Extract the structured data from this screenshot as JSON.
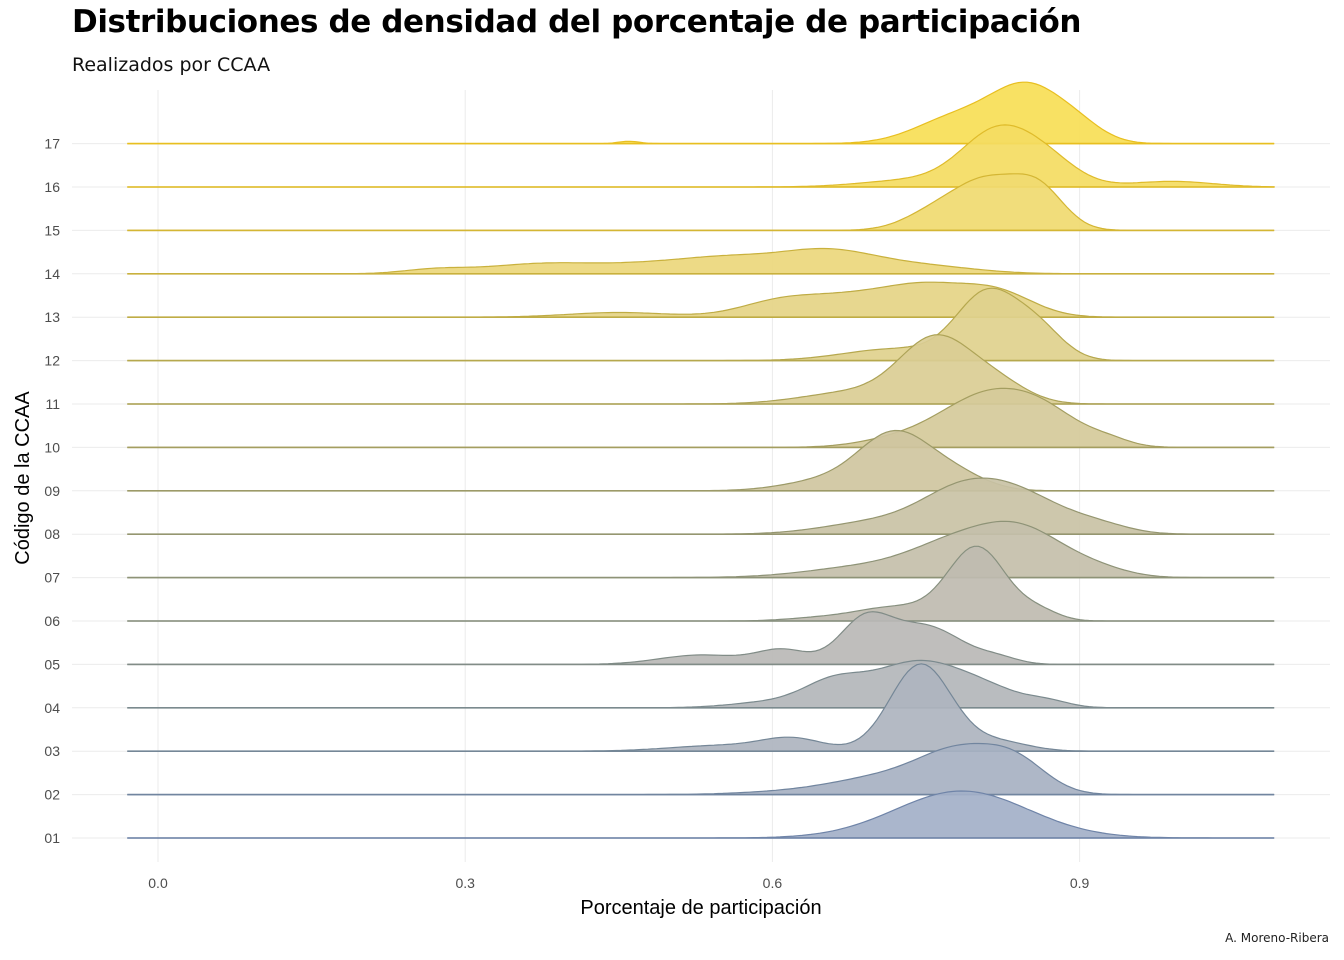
{
  "chart_data": {
    "type": "ridgeline",
    "title": "Distribuciones de densidad del porcentaje de participación",
    "subtitle": "Realizados por CCAA",
    "xlabel": "Porcentaje de participación",
    "ylabel": "Código de la CCAA",
    "caption": "A. Moreno-Ribera",
    "xlim": [
      -0.03,
      1.09
    ],
    "x_ticks": [
      "0.0",
      "0.3",
      "0.6",
      "0.9"
    ],
    "x_tick_values": [
      0.0,
      0.3,
      0.6,
      0.9
    ],
    "grid": true,
    "colors": {
      "low": "#7a8fb5",
      "mid": "#b5aa98",
      "high": "#f2d23a"
    },
    "series": [
      {
        "name": "01",
        "color": "#6f84a8",
        "fill": "#a3b0c8",
        "peaks": [
          [
            0.785,
            0.065,
            1.0
          ]
        ]
      },
      {
        "name": "02",
        "color": "#71859f",
        "fill": "#a7b1c2",
        "peaks": [
          [
            0.62,
            0.05,
            0.06
          ],
          [
            0.71,
            0.05,
            0.35
          ],
          [
            0.785,
            0.04,
            0.85
          ],
          [
            0.84,
            0.03,
            0.55
          ]
        ]
      },
      {
        "name": "03",
        "color": "#758797",
        "fill": "#aeb4bf",
        "peaks": [
          [
            0.55,
            0.05,
            0.12
          ],
          [
            0.62,
            0.03,
            0.25
          ],
          [
            0.745,
            0.03,
            1.85
          ],
          [
            0.82,
            0.03,
            0.2
          ]
        ]
      },
      {
        "name": "04",
        "color": "#7b8a8e",
        "fill": "#b3b6ba",
        "peaks": [
          [
            0.6,
            0.04,
            0.12
          ],
          [
            0.66,
            0.03,
            0.5
          ],
          [
            0.735,
            0.04,
            0.85
          ],
          [
            0.8,
            0.04,
            0.45
          ],
          [
            0.87,
            0.02,
            0.1
          ]
        ]
      },
      {
        "name": "05",
        "color": "#818c87",
        "fill": "#bab9b6",
        "peaks": [
          [
            0.53,
            0.04,
            0.2
          ],
          [
            0.61,
            0.025,
            0.3
          ],
          [
            0.69,
            0.025,
            0.9
          ],
          [
            0.75,
            0.035,
            0.8
          ],
          [
            0.82,
            0.02,
            0.12
          ]
        ]
      },
      {
        "name": "06",
        "color": "#87907f",
        "fill": "#bfbbb0",
        "peaks": [
          [
            0.64,
            0.03,
            0.05
          ],
          [
            0.72,
            0.04,
            0.3
          ],
          [
            0.8,
            0.028,
            1.55
          ],
          [
            0.86,
            0.02,
            0.2
          ]
        ]
      },
      {
        "name": "07",
        "color": "#8e9377",
        "fill": "#c4bfaa",
        "peaks": [
          [
            0.7,
            0.06,
            0.25
          ],
          [
            0.77,
            0.04,
            0.45
          ],
          [
            0.84,
            0.045,
            1.05
          ],
          [
            0.92,
            0.03,
            0.12
          ]
        ]
      },
      {
        "name": "08",
        "color": "#959670",
        "fill": "#c9c2a5",
        "peaks": [
          [
            0.7,
            0.05,
            0.25
          ],
          [
            0.78,
            0.04,
            0.7
          ],
          [
            0.84,
            0.045,
            0.8
          ],
          [
            0.92,
            0.03,
            0.15
          ]
        ]
      },
      {
        "name": "09",
        "color": "#9c9a68",
        "fill": "#cfc6a0",
        "peaks": [
          [
            0.65,
            0.04,
            0.2
          ],
          [
            0.72,
            0.035,
            1.2
          ],
          [
            0.78,
            0.03,
            0.3
          ]
        ]
      },
      {
        "name": "10",
        "color": "#a49e60",
        "fill": "#d5ca9a",
        "peaks": [
          [
            0.73,
            0.04,
            0.2
          ],
          [
            0.8,
            0.04,
            0.85
          ],
          [
            0.86,
            0.04,
            0.8
          ],
          [
            0.93,
            0.02,
            0.1
          ]
        ]
      },
      {
        "name": "11",
        "color": "#ada357",
        "fill": "#dacd94",
        "peaks": [
          [
            0.68,
            0.05,
            0.25
          ],
          [
            0.76,
            0.035,
            1.35
          ],
          [
            0.82,
            0.03,
            0.4
          ]
        ]
      },
      {
        "name": "12",
        "color": "#b6a84e",
        "fill": "#e0d18d",
        "peaks": [
          [
            0.72,
            0.05,
            0.25
          ],
          [
            0.81,
            0.03,
            1.4
          ],
          [
            0.86,
            0.025,
            0.6
          ]
        ]
      },
      {
        "name": "13",
        "color": "#bfac45",
        "fill": "#e5d485",
        "peaks": [
          [
            0.45,
            0.05,
            0.1
          ],
          [
            0.61,
            0.04,
            0.35
          ],
          [
            0.68,
            0.04,
            0.35
          ],
          [
            0.75,
            0.04,
            0.6
          ],
          [
            0.82,
            0.035,
            0.5
          ]
        ]
      },
      {
        "name": "14",
        "color": "#c9b13d",
        "fill": "#ebd77c",
        "peaks": [
          [
            0.27,
            0.03,
            0.08
          ],
          [
            0.38,
            0.06,
            0.22
          ],
          [
            0.5,
            0.05,
            0.2
          ],
          [
            0.56,
            0.04,
            0.2
          ],
          [
            0.65,
            0.05,
            0.5
          ],
          [
            0.75,
            0.05,
            0.15
          ]
        ]
      },
      {
        "name": "15",
        "color": "#d4b634",
        "fill": "#f0da70",
        "peaks": [
          [
            0.76,
            0.03,
            0.4
          ],
          [
            0.81,
            0.03,
            0.95
          ],
          [
            0.86,
            0.025,
            0.85
          ]
        ]
      },
      {
        "name": "16",
        "color": "#dfbb2a",
        "fill": "#f4dc62",
        "peaks": [
          [
            0.74,
            0.05,
            0.15
          ],
          [
            0.82,
            0.035,
            1.15
          ],
          [
            0.87,
            0.03,
            0.45
          ],
          [
            0.99,
            0.04,
            0.12
          ]
        ]
      },
      {
        "name": "17",
        "color": "#e8bf20",
        "fill": "#f7de56",
        "peaks": [
          [
            0.46,
            0.01,
            0.05
          ],
          [
            0.78,
            0.04,
            0.55
          ],
          [
            0.85,
            0.035,
            1.15
          ],
          [
            0.9,
            0.025,
            0.25
          ]
        ]
      }
    ]
  }
}
